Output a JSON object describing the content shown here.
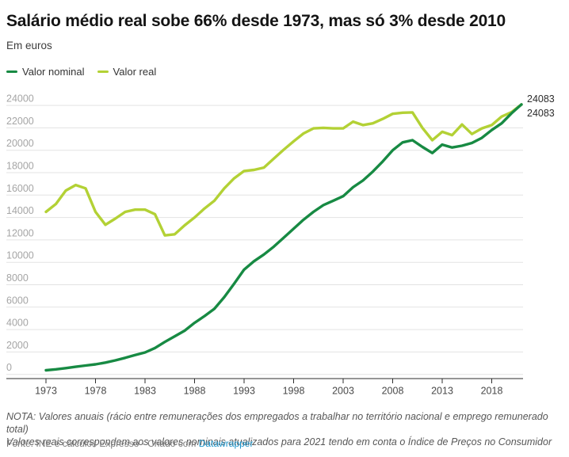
{
  "header": {
    "title": "Salário médio real sobe 66% desde 1973, mas só 3% desde 2010",
    "subtitle": "Em euros"
  },
  "legend": [
    {
      "label": "Valor nominal",
      "color": "#178a43"
    },
    {
      "label": "Valor real",
      "color": "#b3d135"
    }
  ],
  "chart_data": {
    "type": "line",
    "title": "Salário médio real sobe 66% desde 1973, mas só 3% desde 2010",
    "subtitle_unit": "Em euros",
    "xlabel": "",
    "ylabel": "",
    "grid": true,
    "legend_position": "top",
    "ylim": [
      0,
      24000
    ],
    "yticks": [
      0,
      2000,
      4000,
      6000,
      8000,
      10000,
      12000,
      14000,
      16000,
      18000,
      20000,
      22000,
      24000
    ],
    "xticks": [
      1973,
      1978,
      1983,
      1988,
      1993,
      1998,
      2003,
      2008,
      2013,
      2018
    ],
    "x": [
      1973,
      1974,
      1975,
      1976,
      1977,
      1978,
      1979,
      1980,
      1981,
      1982,
      1983,
      1984,
      1985,
      1986,
      1987,
      1988,
      1989,
      1990,
      1991,
      1992,
      1993,
      1994,
      1995,
      1996,
      1997,
      1998,
      1999,
      2000,
      2001,
      2002,
      2003,
      2004,
      2005,
      2006,
      2007,
      2008,
      2009,
      2010,
      2011,
      2012,
      2013,
      2014,
      2015,
      2016,
      2017,
      2018,
      2019,
      2020,
      2021
    ],
    "series": [
      {
        "name": "Valor nominal",
        "color": "#178a43",
        "end_label": "24083",
        "values": [
          370,
          450,
          560,
          680,
          790,
          900,
          1050,
          1250,
          1480,
          1725,
          1960,
          2350,
          2900,
          3400,
          3900,
          4600,
          5200,
          5850,
          6900,
          8100,
          9350,
          10100,
          10700,
          11400,
          12200,
          13000,
          13800,
          14500,
          15100,
          15500,
          15900,
          16700,
          17300,
          18100,
          19000,
          20000,
          20700,
          20900,
          20300,
          19750,
          20500,
          20250,
          20400,
          20650,
          21100,
          21800,
          22400,
          23300,
          24083
        ]
      },
      {
        "name": "Valor real",
        "color": "#b3d135",
        "end_label": "24083",
        "values": [
          14500,
          15200,
          16400,
          16900,
          16600,
          14500,
          13350,
          13900,
          14500,
          14700,
          14700,
          14300,
          12400,
          12500,
          13300,
          14000,
          14800,
          15500,
          16600,
          17500,
          18150,
          18250,
          18450,
          19250,
          20050,
          20800,
          21500,
          21950,
          22000,
          21950,
          21950,
          22550,
          22250,
          22400,
          22800,
          23250,
          23350,
          23381,
          22000,
          20900,
          21650,
          21350,
          22300,
          21450,
          21950,
          22250,
          23000,
          23400,
          24083
        ]
      }
    ],
    "end_labels": [
      "24083",
      "24083"
    ]
  },
  "footer": {
    "note_line1": "NOTA: Valores anuais (rácio entre remunerações dos empregados a trabalhar no território nacional e emprego remunerado total)",
    "note_line2": "Valores reais correspondem aos valores nominais atualizados para 2021 tendo em conta o Índice de Preços no Consumidor",
    "source_prefix": "Fonte: INE e cálculos Expresso · Criado com ",
    "source_link": "Datawrapper"
  },
  "colors": {
    "title": "#141414",
    "gridline": "#e3e3e3",
    "axis_line": "#2e2e2e",
    "y_tick_label": "#a5a5a5",
    "x_tick_label": "#494949",
    "end_label": "#2c2c2c",
    "note": "#575757",
    "source": "#7c7c7c",
    "link": "#1e96cc"
  }
}
